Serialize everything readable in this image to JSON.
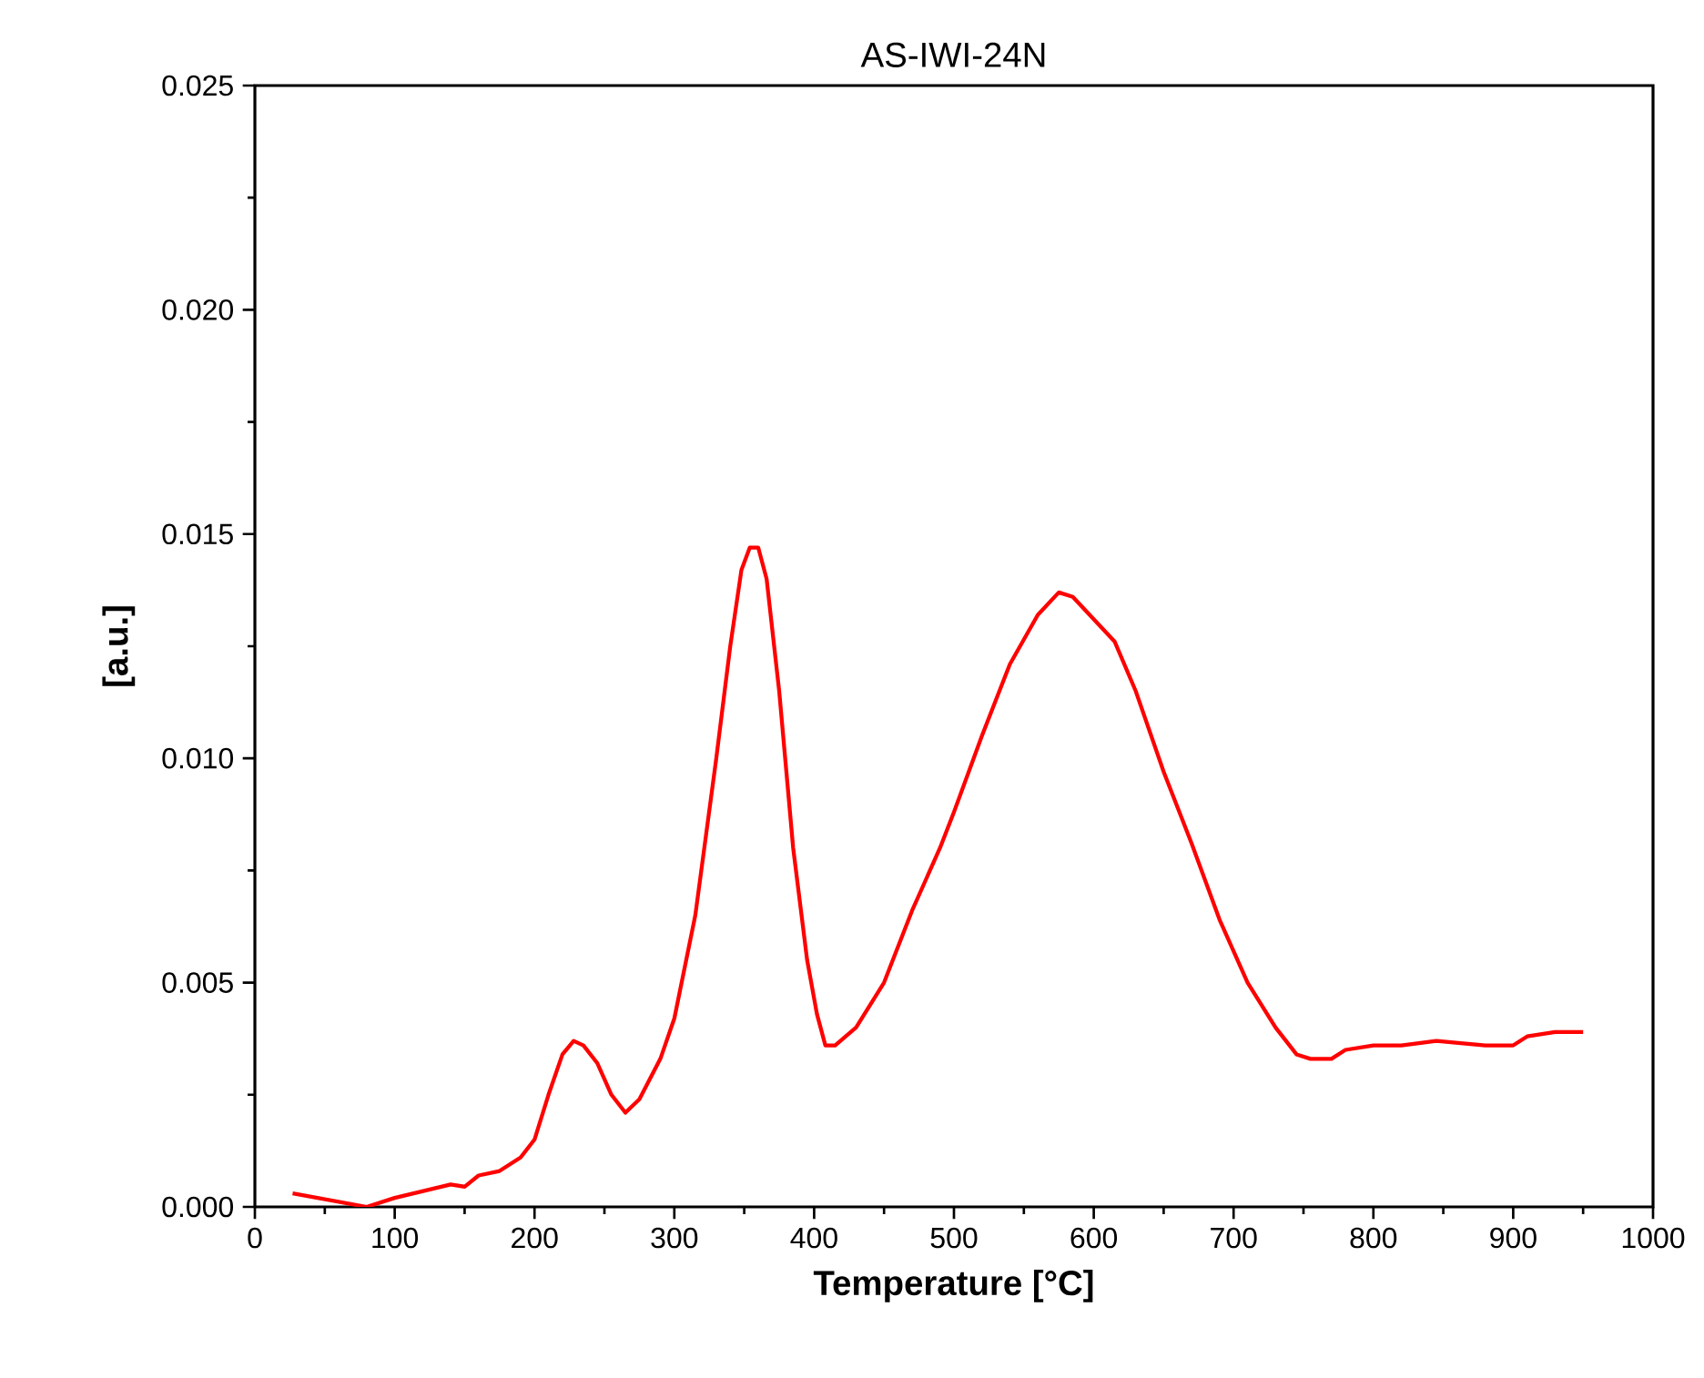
{
  "chart_data": {
    "type": "line",
    "title": "AS-IWI-24N",
    "xlabel": "Temperature [°C]",
    "ylabel": "[a.u.]",
    "xlim": [
      0,
      1000
    ],
    "xticks": [
      0,
      100,
      200,
      300,
      400,
      500,
      600,
      700,
      800,
      900,
      1000
    ],
    "ylim": [
      0,
      0.025
    ],
    "yticks": [
      {
        "value": 0,
        "label": "0.000"
      },
      {
        "value": 0.005,
        "label": "0.005"
      },
      {
        "value": 0.01,
        "label": "0.010"
      },
      {
        "value": 0.015,
        "label": "0.015"
      },
      {
        "value": 0.02,
        "label": "0.020"
      },
      {
        "value": 0.025,
        "label": "0.025"
      }
    ],
    "grid": false,
    "marker": "none",
    "line_style": "solid",
    "series": [
      {
        "color": "#ff0000",
        "x": [
          27,
          80,
          100,
          140,
          150,
          160,
          175,
          190,
          200,
          210,
          220,
          228,
          235,
          245,
          255,
          265,
          275,
          290,
          300,
          315,
          330,
          340,
          348,
          354,
          360,
          366,
          375,
          385,
          395,
          402,
          408,
          415,
          430,
          450,
          470,
          490,
          500,
          520,
          540,
          560,
          575,
          585,
          600,
          615,
          630,
          650,
          670,
          690,
          710,
          730,
          745,
          755,
          770,
          780,
          800,
          820,
          845,
          880,
          900,
          910,
          930,
          950
        ],
        "values": [
          0.0003,
          0.0,
          0.0002,
          0.0005,
          0.00045,
          0.0007,
          0.0008,
          0.0011,
          0.0015,
          0.0025,
          0.0034,
          0.0037,
          0.0036,
          0.0032,
          0.0025,
          0.0021,
          0.0024,
          0.0033,
          0.0042,
          0.0065,
          0.01,
          0.0125,
          0.0142,
          0.0147,
          0.0147,
          0.014,
          0.0115,
          0.008,
          0.0055,
          0.0043,
          0.0036,
          0.0036,
          0.004,
          0.005,
          0.0066,
          0.008,
          0.0088,
          0.0105,
          0.0121,
          0.0132,
          0.0137,
          0.0136,
          0.0131,
          0.0126,
          0.0115,
          0.0097,
          0.0081,
          0.0064,
          0.005,
          0.004,
          0.0034,
          0.0033,
          0.0033,
          0.0035,
          0.0036,
          0.0036,
          0.0037,
          0.0036,
          0.0036,
          0.0038,
          0.0039,
          0.0039
        ]
      }
    ]
  }
}
